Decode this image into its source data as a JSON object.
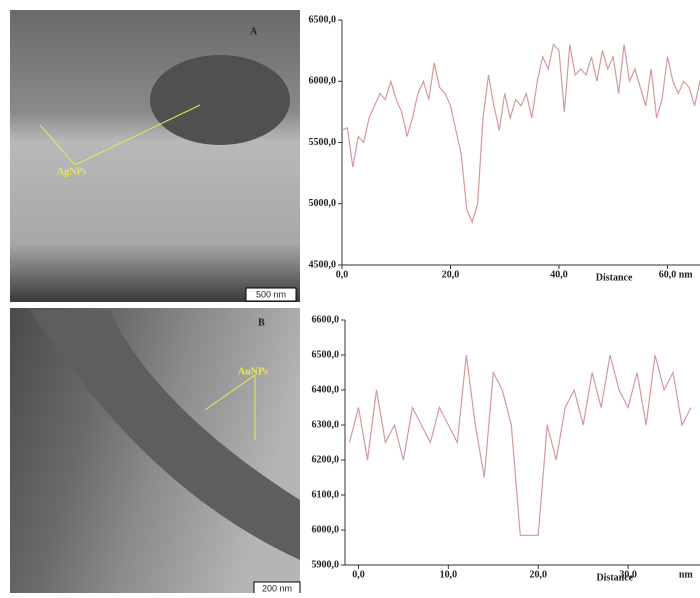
{
  "images": [
    {
      "label": "A",
      "annotation": "AgNPs",
      "scale": "500 nm"
    },
    {
      "label": "B",
      "annotation": "AuNPs",
      "scale": "200 nm"
    }
  ],
  "chart_data": [
    {
      "type": "line",
      "x_label": "Distance",
      "x_unit": "nm",
      "color": "#d49a9a",
      "x": [
        0,
        1,
        2,
        3,
        4,
        5,
        6,
        7,
        8,
        9,
        10,
        11,
        12,
        13,
        14,
        15,
        16,
        17,
        18,
        19,
        20,
        21,
        22,
        23,
        24,
        25,
        26,
        27,
        28,
        29,
        30,
        31,
        32,
        33,
        34,
        35,
        36,
        37,
        38,
        39,
        40,
        41,
        42,
        43,
        44,
        45,
        46,
        47,
        48,
        49,
        50,
        51,
        52,
        53,
        54,
        55,
        56,
        57,
        58,
        59,
        60,
        61,
        62,
        63,
        64,
        65,
        66
      ],
      "values": [
        5600,
        5620,
        5300,
        5550,
        5500,
        5700,
        5800,
        5900,
        5850,
        6000,
        5850,
        5750,
        5550,
        5700,
        5900,
        6000,
        5850,
        6150,
        5950,
        5900,
        5800,
        5600,
        5400,
        4950,
        4850,
        5000,
        5700,
        6050,
        5800,
        5600,
        5900,
        5700,
        5850,
        5800,
        5900,
        5700,
        6000,
        6200,
        6100,
        6300,
        6250,
        5750,
        6300,
        6050,
        6100,
        6050,
        6200,
        6000,
        6250,
        6100,
        6200,
        5900,
        6300,
        6000,
        6100,
        5950,
        5800,
        6100,
        5700,
        5850,
        6200,
        6000,
        5900,
        6000,
        5950,
        5800,
        6000
      ],
      "xlim": [
        0,
        66
      ],
      "ylim": [
        4500,
        6500
      ],
      "xticks": [
        {
          "value": 0,
          "label": "0,0"
        },
        {
          "value": 20,
          "label": "20,0"
        },
        {
          "value": 40,
          "label": "40,0"
        },
        {
          "value": 60,
          "label": "60,0"
        }
      ],
      "yticks": [
        {
          "value": 4500,
          "label": "4500,0"
        },
        {
          "value": 5000,
          "label": "5000,0"
        },
        {
          "value": 5500,
          "label": "5500,0"
        },
        {
          "value": 6000,
          "label": "6000,0"
        },
        {
          "value": 6500,
          "label": "6500,0"
        }
      ]
    },
    {
      "type": "line",
      "x_label": "Distance",
      "x_unit": "nm",
      "color": "#d49a9a",
      "x": [
        -1,
        0,
        1,
        2,
        3,
        4,
        5,
        6,
        7,
        8,
        9,
        10,
        11,
        12,
        13,
        14,
        15,
        16,
        17,
        18,
        19,
        20,
        21,
        22,
        23,
        24,
        25,
        26,
        27,
        28,
        29,
        30,
        31,
        32,
        33,
        34,
        35,
        36,
        37
      ],
      "values": [
        6250,
        6350,
        6200,
        6400,
        6250,
        6300,
        6200,
        6350,
        6300,
        6250,
        6350,
        6300,
        6250,
        6500,
        6300,
        6150,
        6450,
        6400,
        6300,
        5985,
        5985,
        5985,
        6300,
        6200,
        6350,
        6400,
        6300,
        6450,
        6350,
        6500,
        6400,
        6350,
        6450,
        6300,
        6500,
        6400,
        6450,
        6300,
        6350
      ],
      "xlim": [
        -1.5,
        38
      ],
      "ylim": [
        5900,
        6600
      ],
      "xticks": [
        {
          "value": 0,
          "label": "0,0"
        },
        {
          "value": 10,
          "label": "10,0"
        },
        {
          "value": 20,
          "label": "20,0"
        },
        {
          "value": 30,
          "label": "30,0"
        }
      ],
      "yticks": [
        {
          "value": 5900,
          "label": "5900,0"
        },
        {
          "value": 6000,
          "label": "6000,0"
        },
        {
          "value": 6100,
          "label": "6100,0"
        },
        {
          "value": 6200,
          "label": "6200,0"
        },
        {
          "value": 6300,
          "label": "6300,0"
        },
        {
          "value": 6400,
          "label": "6400,0"
        },
        {
          "value": 6500,
          "label": "6500,0"
        },
        {
          "value": 6600,
          "label": "6600,0"
        }
      ]
    }
  ]
}
